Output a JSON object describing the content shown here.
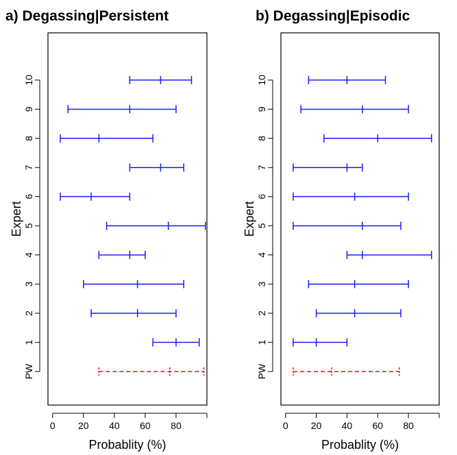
{
  "chart_data": [
    {
      "type": "errorbar",
      "title": "a) Degassing|Persistent",
      "xlabel": "Probablity (%)",
      "ylabel": "Expert",
      "xlim": [
        -3,
        100
      ],
      "xticks": [
        0,
        20,
        40,
        60,
        80
      ],
      "categories": [
        "PW",
        "1",
        "2",
        "3",
        "4",
        "5",
        "6",
        "7",
        "8",
        "9",
        "10"
      ],
      "grid": false,
      "series": [
        {
          "color": "#1a1aff",
          "style": "solid",
          "points": [
            {
              "category": "1",
              "low": 65,
              "mid": 80,
              "high": 95
            },
            {
              "category": "2",
              "low": 25,
              "mid": 55,
              "high": 80
            },
            {
              "category": "3",
              "low": 20,
              "mid": 55,
              "high": 85
            },
            {
              "category": "4",
              "low": 30,
              "mid": 50,
              "high": 60
            },
            {
              "category": "5",
              "low": 35,
              "mid": 75,
              "high": 99
            },
            {
              "category": "6",
              "low": 5,
              "mid": 25,
              "high": 50
            },
            {
              "category": "7",
              "low": 50,
              "mid": 70,
              "high": 85
            },
            {
              "category": "8",
              "low": 5,
              "mid": 30,
              "high": 65
            },
            {
              "category": "9",
              "low": 10,
              "mid": 50,
              "high": 80
            },
            {
              "category": "10",
              "low": 50,
              "mid": 70,
              "high": 90
            }
          ]
        },
        {
          "color": "#dd1111",
          "style": "dashed",
          "points": [
            {
              "category": "PW",
              "low": 30,
              "mid": 76,
              "high": 98
            }
          ]
        }
      ]
    },
    {
      "type": "errorbar",
      "title": "b) Degassing|Episodic",
      "xlabel": "Probablity (%)",
      "ylabel": "Expert",
      "xlim": [
        -3,
        100
      ],
      "xticks": [
        0,
        20,
        40,
        60,
        80
      ],
      "categories": [
        "PW",
        "1",
        "2",
        "3",
        "4",
        "5",
        "6",
        "7",
        "8",
        "9",
        "10"
      ],
      "grid": false,
      "series": [
        {
          "color": "#1a1aff",
          "style": "solid",
          "points": [
            {
              "category": "1",
              "low": 5,
              "mid": 20,
              "high": 40
            },
            {
              "category": "2",
              "low": 20,
              "mid": 45,
              "high": 75
            },
            {
              "category": "3",
              "low": 15,
              "mid": 45,
              "high": 80
            },
            {
              "category": "4",
              "low": 40,
              "mid": 50,
              "high": 95
            },
            {
              "category": "5",
              "low": 5,
              "mid": 50,
              "high": 75
            },
            {
              "category": "6",
              "low": 5,
              "mid": 45,
              "high": 80
            },
            {
              "category": "7",
              "low": 5,
              "mid": 40,
              "high": 50
            },
            {
              "category": "8",
              "low": 25,
              "mid": 60,
              "high": 95
            },
            {
              "category": "9",
              "low": 10,
              "mid": 50,
              "high": 80
            },
            {
              "category": "10",
              "low": 15,
              "mid": 40,
              "high": 65
            }
          ]
        },
        {
          "color": "#dd1111",
          "style": "dashed",
          "points": [
            {
              "category": "PW",
              "low": 5,
              "mid": 30,
              "high": 74
            }
          ]
        }
      ]
    }
  ]
}
